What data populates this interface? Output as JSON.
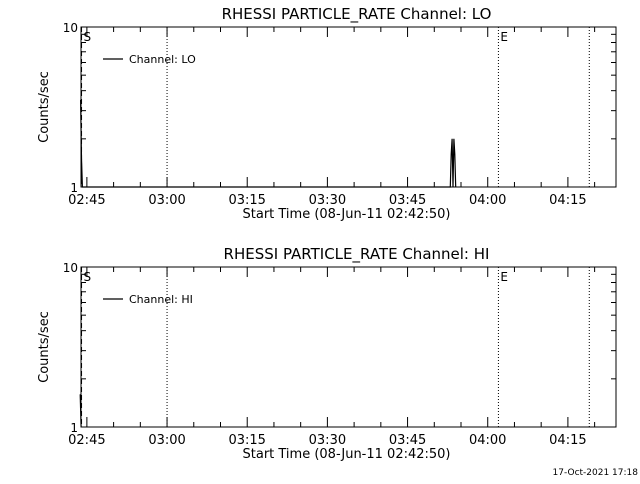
{
  "footer": {
    "timestamp": "17-Oct-2021 17:18"
  },
  "chart_data": [
    {
      "type": "line",
      "title": "RHESSI PARTICLE_RATE Channel: LO",
      "xlabel": "Start Time (08-Jun-11 02:42:50)",
      "ylabel": "Counts/sec",
      "x_start_minutes": 163.9,
      "xlim": [
        "02:43",
        "04:24"
      ],
      "ylim": [
        1,
        10
      ],
      "y_scale": "log",
      "y_ticks": [
        1,
        10
      ],
      "x_ticks": [
        "02:45",
        "03:00",
        "03:15",
        "03:30",
        "03:45",
        "04:00",
        "04:15"
      ],
      "legend": {
        "placement": "top-left",
        "entries": [
          "Channel: LO"
        ]
      },
      "markers": [
        {
          "label": "S",
          "time": "02:44",
          "style": "dashed"
        },
        {
          "label": "",
          "time": "03:00",
          "style": "dotted"
        },
        {
          "label": "E",
          "time": "04:02",
          "style": "dotted"
        },
        {
          "label": "",
          "time": "04:19",
          "style": "dotted"
        }
      ],
      "series": [
        {
          "name": "Channel: LO",
          "points": [
            [
              "02:43:50",
              3.5
            ],
            [
              "02:44:00",
              1.5
            ],
            [
              "02:44:10",
              1.0
            ],
            [
              "03:53:00",
              1.0
            ],
            [
              "03:53:10",
              1.6
            ],
            [
              "03:53:20",
              2.0
            ],
            [
              "03:53:30",
              1.0
            ],
            [
              "03:53:40",
              2.0
            ],
            [
              "03:53:50",
              1.6
            ],
            [
              "03:54:00",
              1.0
            ]
          ]
        }
      ]
    },
    {
      "type": "line",
      "title": "RHESSI PARTICLE_RATE Channel: HI",
      "xlabel": "Start Time (08-Jun-11 02:42:50)",
      "ylabel": "Counts/sec",
      "x_start_minutes": 163.9,
      "xlim": [
        "02:43",
        "04:24"
      ],
      "ylim": [
        1,
        10
      ],
      "y_scale": "log",
      "y_ticks": [
        1,
        10
      ],
      "x_ticks": [
        "02:45",
        "03:00",
        "03:15",
        "03:30",
        "03:45",
        "04:00",
        "04:15"
      ],
      "legend": {
        "placement": "top-left",
        "entries": [
          "Channel: HI"
        ]
      },
      "markers": [
        {
          "label": "S",
          "time": "02:44",
          "style": "dashed"
        },
        {
          "label": "",
          "time": "03:00",
          "style": "dotted"
        },
        {
          "label": "E",
          "time": "04:02",
          "style": "dotted"
        },
        {
          "label": "",
          "time": "04:19",
          "style": "dotted"
        }
      ],
      "series": [
        {
          "name": "Channel: HI",
          "points": [
            [
              "02:43:45",
              1.6
            ],
            [
              "02:43:55",
              1.0
            ]
          ]
        }
      ]
    }
  ]
}
